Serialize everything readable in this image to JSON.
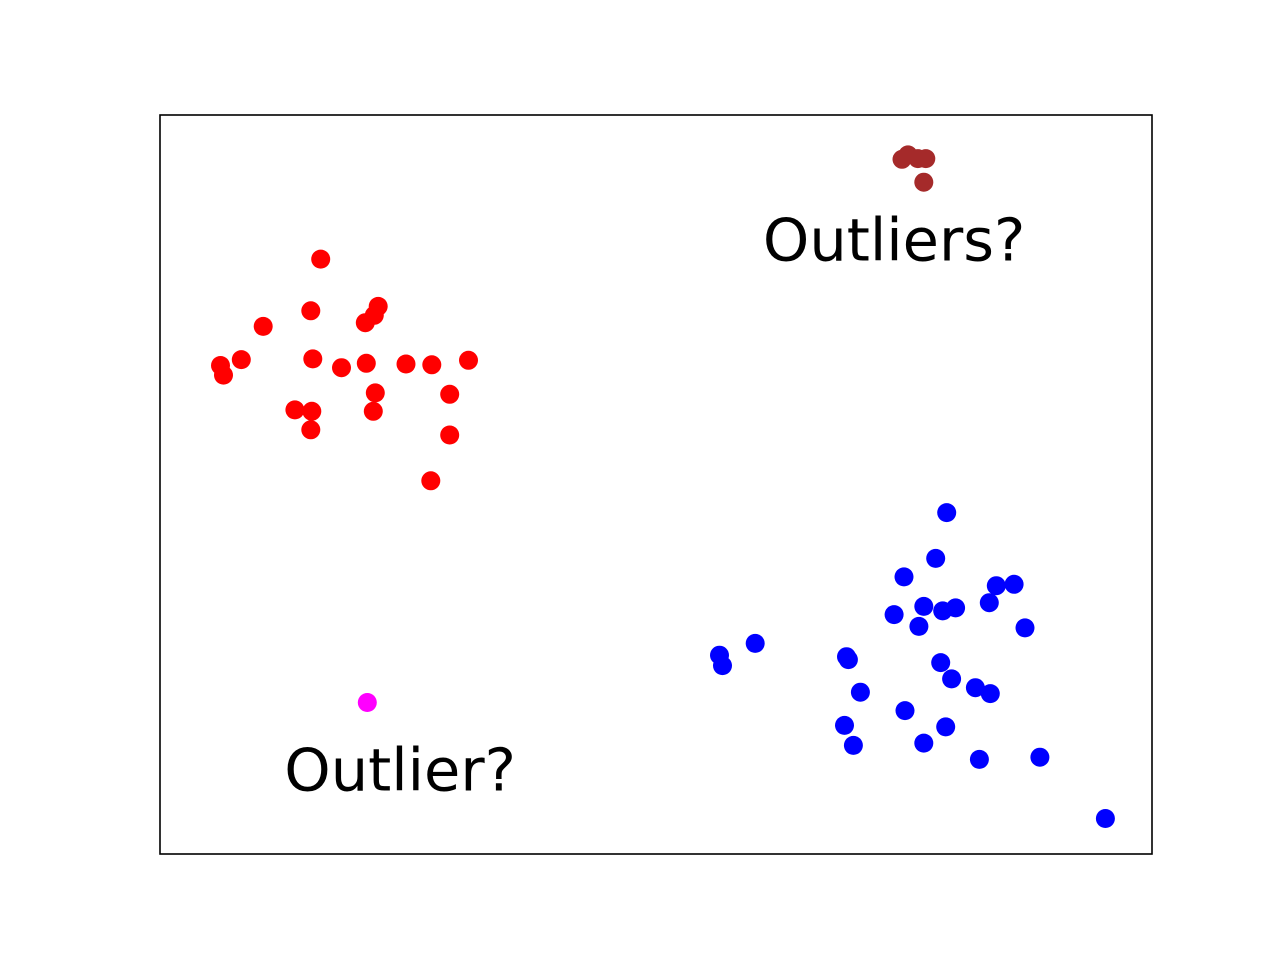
{
  "chart_data": {
    "type": "scatter",
    "title": "",
    "xlabel": "",
    "ylabel": "",
    "xlim": [
      0,
      100
    ],
    "ylim": [
      0,
      100
    ],
    "ticks_visible": false,
    "grid": false,
    "legend": "none",
    "series": [
      {
        "color": "#ff0000",
        "points": [
          [
            16.2,
            80.5
          ],
          [
            15.2,
            73.5
          ],
          [
            10.4,
            71.4
          ],
          [
            20.7,
            71.9
          ],
          [
            22.0,
            74.1
          ],
          [
            21.6,
            72.9
          ],
          [
            6.1,
            66.1
          ],
          [
            15.4,
            67.0
          ],
          [
            31.1,
            66.8
          ],
          [
            8.2,
            66.9
          ],
          [
            18.3,
            65.8
          ],
          [
            24.8,
            66.3
          ],
          [
            27.4,
            66.2
          ],
          [
            6.4,
            64.8
          ],
          [
            20.8,
            66.4
          ],
          [
            29.2,
            62.2
          ],
          [
            21.7,
            62.4
          ],
          [
            13.6,
            60.1
          ],
          [
            15.3,
            59.9
          ],
          [
            21.5,
            59.9
          ],
          [
            15.2,
            57.4
          ],
          [
            29.2,
            56.7
          ],
          [
            27.3,
            50.5
          ]
        ]
      },
      {
        "color": "#0000ff",
        "points": [
          [
            79.3,
            46.2
          ],
          [
            78.2,
            40.0
          ],
          [
            75.0,
            37.5
          ],
          [
            84.3,
            36.3
          ],
          [
            86.1,
            36.5
          ],
          [
            77.0,
            33.5
          ],
          [
            78.9,
            32.9
          ],
          [
            80.2,
            33.3
          ],
          [
            83.6,
            34.0
          ],
          [
            74.0,
            32.4
          ],
          [
            76.5,
            30.8
          ],
          [
            60.0,
            28.5
          ],
          [
            56.4,
            26.9
          ],
          [
            56.7,
            25.5
          ],
          [
            69.2,
            26.7
          ],
          [
            69.4,
            26.3
          ],
          [
            78.7,
            25.9
          ],
          [
            87.2,
            30.6
          ],
          [
            79.8,
            23.7
          ],
          [
            82.2,
            22.5
          ],
          [
            83.7,
            21.7
          ],
          [
            70.6,
            21.9
          ],
          [
            75.1,
            19.4
          ],
          [
            69.0,
            17.4
          ],
          [
            79.2,
            17.2
          ],
          [
            69.9,
            14.7
          ],
          [
            77.0,
            15.0
          ],
          [
            82.6,
            12.8
          ],
          [
            88.7,
            13.1
          ],
          [
            95.3,
            4.8
          ]
        ]
      },
      {
        "color": "#a52a2a",
        "points": [
          [
            74.8,
            94.0
          ],
          [
            75.4,
            94.6
          ],
          [
            76.4,
            94.1
          ],
          [
            77.2,
            94.1
          ],
          [
            77.0,
            90.9
          ]
        ]
      },
      {
        "color": "#ff00ff",
        "points": [
          [
            20.9,
            20.5
          ]
        ]
      }
    ],
    "annotations": [
      {
        "text": "Outliers?",
        "x": 74.0,
        "y": 82.5
      },
      {
        "text": "Outlier?",
        "x": 24.2,
        "y": 10.8
      }
    ]
  }
}
